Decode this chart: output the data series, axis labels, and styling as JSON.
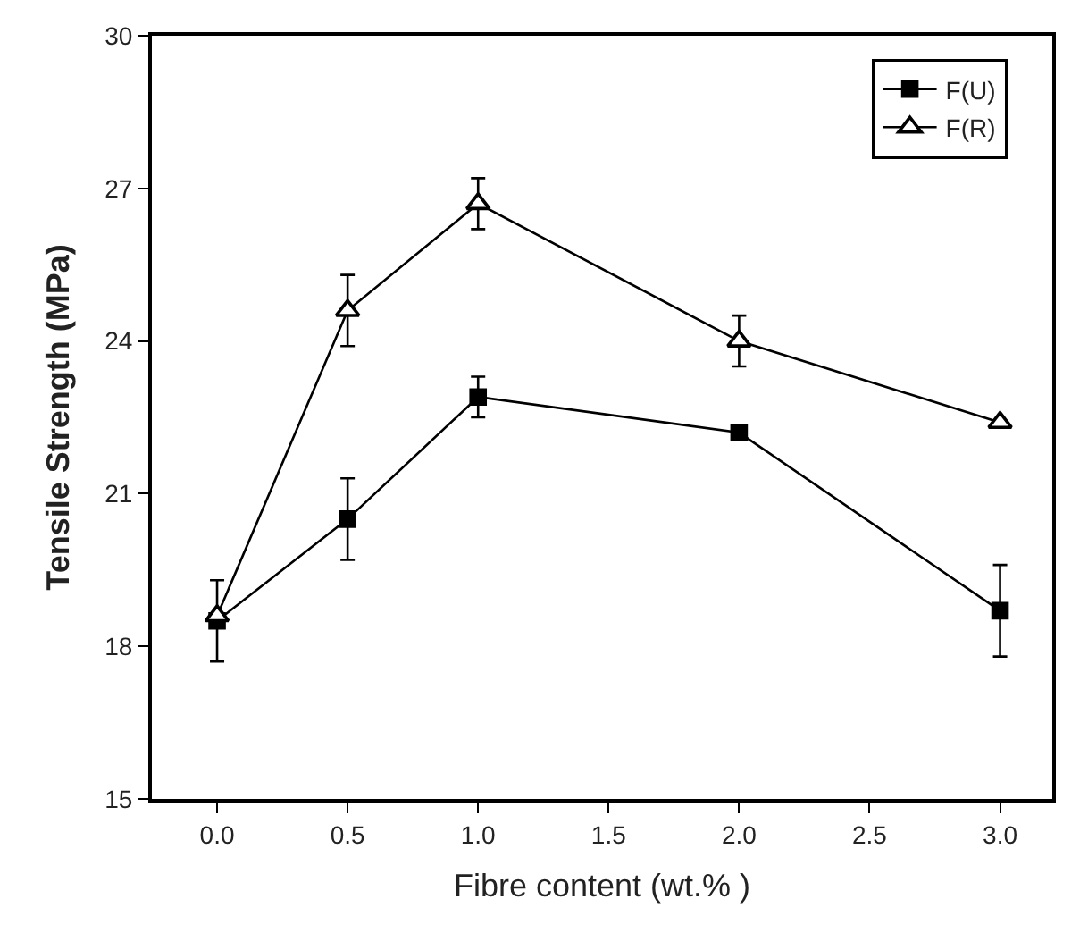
{
  "chart_data": {
    "type": "line",
    "xlabel": "Fibre content (wt.% )",
    "ylabel": "Tensile Strength (MPa)",
    "x": [
      0,
      0.5,
      1,
      2,
      3
    ],
    "series": [
      {
        "name": "F(U)",
        "color": "#000000",
        "marker": "square",
        "values": [
          18.5,
          20.5,
          22.9,
          22.2,
          18.7
        ],
        "errors": [
          0.8,
          0.8,
          0.4,
          null,
          0.9
        ]
      },
      {
        "name": "F(R)",
        "color": "#000000",
        "marker": "triangle",
        "values": [
          18.6,
          24.6,
          26.7,
          24.0,
          22.4
        ],
        "errors": [
          null,
          0.7,
          0.5,
          0.5,
          null
        ]
      }
    ],
    "xlim": [
      -0.25,
      3.2
    ],
    "xticks": [
      {
        "value": 0,
        "label": "0.0"
      },
      {
        "value": 0.5,
        "label": "0.5"
      },
      {
        "value": 1,
        "label": "1.0"
      },
      {
        "value": 1.5,
        "label": "1.5"
      },
      {
        "value": 2,
        "label": "2.0"
      },
      {
        "value": 2.5,
        "label": "2.5"
      },
      {
        "value": 3,
        "label": "3.0"
      }
    ],
    "ylim": [
      15,
      30
    ],
    "yticks": [
      15,
      18,
      21,
      24,
      27,
      30
    ],
    "legend": "top right",
    "line_style": "solid"
  }
}
